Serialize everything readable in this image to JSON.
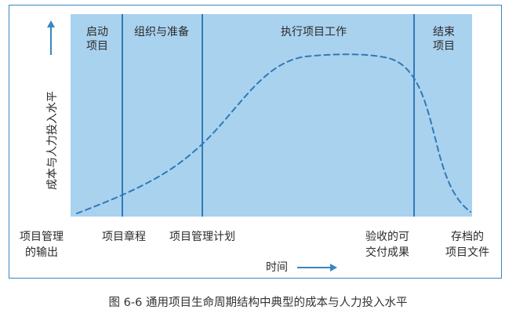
{
  "diagram": {
    "phases": [
      {
        "label": "启动\n项目"
      },
      {
        "label": "组织与准备"
      },
      {
        "label": "执行项目工作"
      },
      {
        "label": "结束\n项目"
      }
    ],
    "y_axis_label": "成本与人力投入水平",
    "x_axis_label": "时间",
    "milestones": [
      {
        "label": "项目管理\n的输出"
      },
      {
        "label": "项目章程"
      },
      {
        "label": "项目管理计划"
      },
      {
        "label": "验收的可\n交付成果"
      },
      {
        "label": "存档的\n项目文件"
      }
    ],
    "colors": {
      "phase_fill": "#a9d2ee",
      "divider": "#2f7ab8",
      "curve": "#2f7ab8",
      "frame": "#3a86c0"
    }
  },
  "caption": "图 6-6   通用项目生命周期结构中典型的成本与人力投入水平"
}
